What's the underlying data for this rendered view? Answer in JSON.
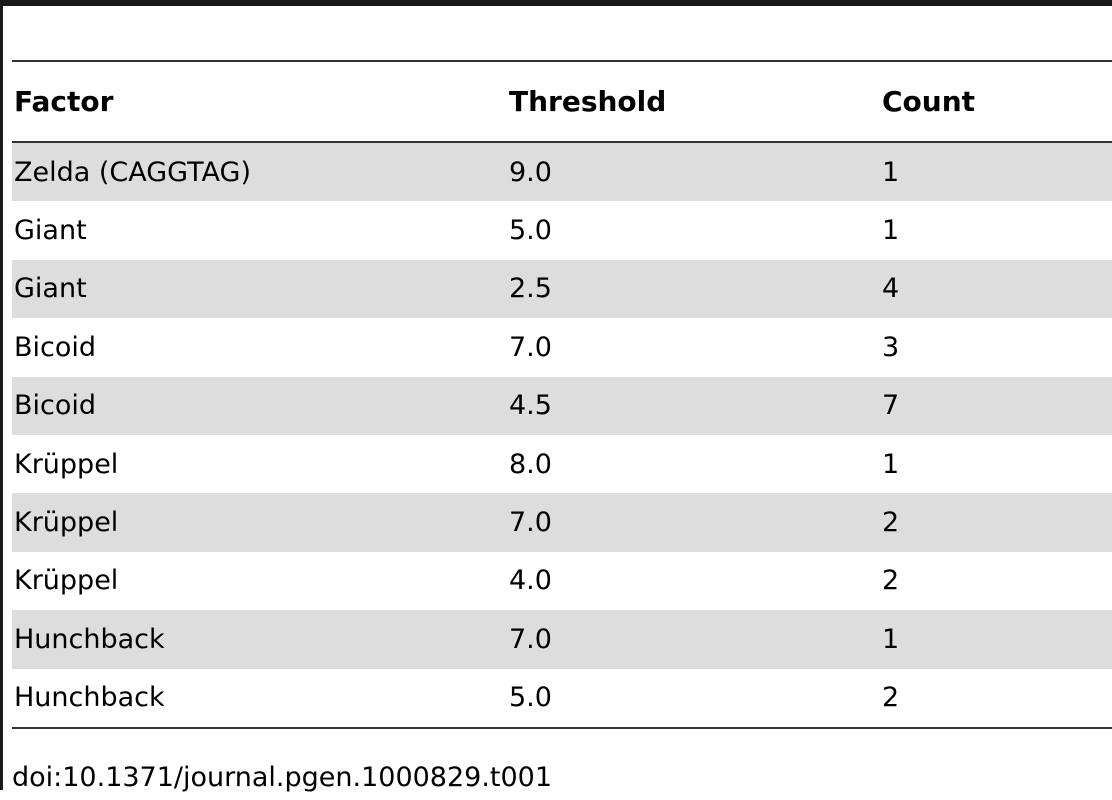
{
  "table": {
    "headers": [
      "Factor",
      "Threshold",
      "Count"
    ],
    "rows": [
      {
        "factor": "Zelda (CAGGTAG)",
        "threshold": "9.0",
        "count": "1"
      },
      {
        "factor": "Giant",
        "threshold": "5.0",
        "count": "1"
      },
      {
        "factor": "Giant",
        "threshold": "2.5",
        "count": "4"
      },
      {
        "factor": "Bicoid",
        "threshold": "7.0",
        "count": "3"
      },
      {
        "factor": "Bicoid",
        "threshold": "4.5",
        "count": "7"
      },
      {
        "factor": "Krüppel",
        "threshold": "8.0",
        "count": "1"
      },
      {
        "factor": "Krüppel",
        "threshold": "7.0",
        "count": "2"
      },
      {
        "factor": "Krüppel",
        "threshold": "4.0",
        "count": "2"
      },
      {
        "factor": "Hunchback",
        "threshold": "7.0",
        "count": "1"
      },
      {
        "factor": "Hunchback",
        "threshold": "5.0",
        "count": "2"
      }
    ]
  },
  "footnote": "doi:10.1371/journal.pgen.1000829.t001"
}
